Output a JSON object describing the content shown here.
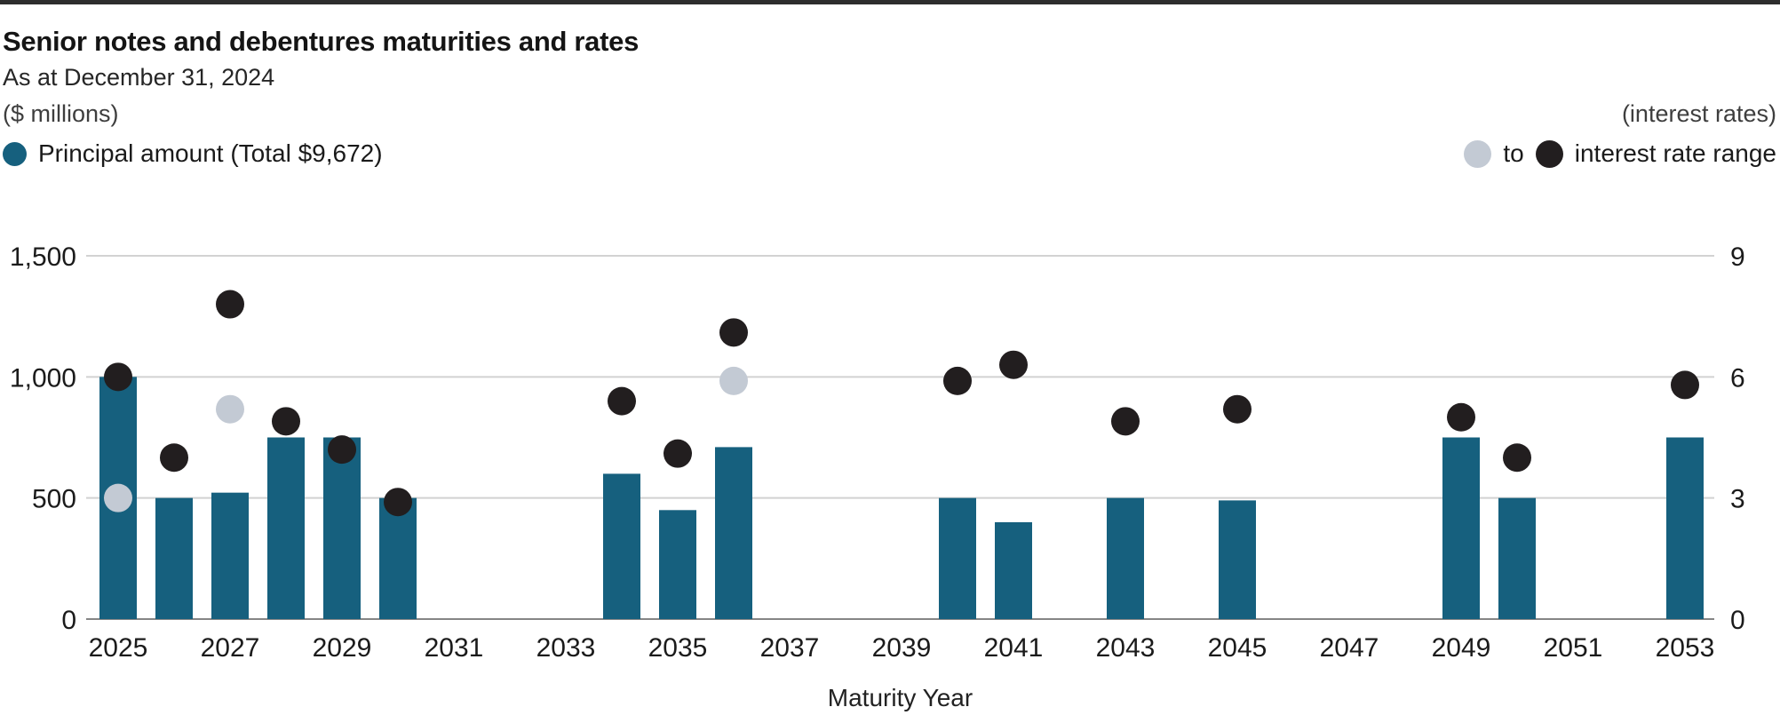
{
  "header": {
    "title": "Senior notes and debentures maturities and rates",
    "subtitle": "As at December 31, 2024",
    "left_axis_caption": "($ millions)",
    "right_axis_caption": "(interest rates)"
  },
  "legend": {
    "principal_label": "Principal amount (Total $9,672)",
    "principal_total": "$9,672",
    "range_to_label": "to",
    "range_label": "interest rate range"
  },
  "colors": {
    "bar": "#16607e",
    "dot_high": "#221e1f",
    "dot_low": "#c3cad4",
    "gridline": "#d2d2d2",
    "axis_line": "#858585",
    "top_rule": "#2d2d2d"
  },
  "chart_data": {
    "type": "bar",
    "title": "Senior notes and debentures maturities and rates",
    "subtitle": "As at December 31, 2024",
    "xlabel": "Maturity Year",
    "legend_position": "top",
    "grid": true,
    "left_axis": {
      "label": "($ millions)",
      "range": [
        0,
        1500
      ],
      "ticks": [
        0,
        500,
        1000,
        1500
      ],
      "tick_labels": [
        "0",
        "500",
        "1,000",
        "1,500"
      ]
    },
    "right_axis": {
      "label": "(interest rates)",
      "range": [
        0,
        9
      ],
      "ticks": [
        0,
        3,
        6,
        9
      ],
      "tick_labels": [
        "0",
        "3",
        "6",
        "9"
      ]
    },
    "x_range": [
      2025,
      2053
    ],
    "x_ticks": [
      2025,
      2027,
      2029,
      2031,
      2033,
      2035,
      2037,
      2039,
      2041,
      2043,
      2045,
      2047,
      2049,
      2051,
      2053
    ],
    "series_notes": "principal = bar height in $ millions (left axis); rate_high = black dot, rate_low = grey dot (right axis, %)",
    "bars": [
      {
        "year": 2025,
        "principal": 1000,
        "rate_low": 3.0,
        "rate_high": 6.0
      },
      {
        "year": 2026,
        "principal": 500,
        "rate_high": 4.0
      },
      {
        "year": 2027,
        "principal": 522,
        "rate_low": 5.2,
        "rate_high": 7.8
      },
      {
        "year": 2028,
        "principal": 750,
        "rate_high": 4.9
      },
      {
        "year": 2029,
        "principal": 750,
        "rate_high": 4.2
      },
      {
        "year": 2030,
        "principal": 500,
        "rate_high": 2.9
      },
      {
        "year": 2034,
        "principal": 600,
        "rate_high": 5.4
      },
      {
        "year": 2035,
        "principal": 450,
        "rate_high": 4.1
      },
      {
        "year": 2036,
        "principal": 710,
        "rate_low": 5.9,
        "rate_high": 7.1
      },
      {
        "year": 2040,
        "principal": 500,
        "rate_high": 5.9
      },
      {
        "year": 2041,
        "principal": 400,
        "rate_high": 6.3
      },
      {
        "year": 2043,
        "principal": 500,
        "rate_high": 4.9
      },
      {
        "year": 2045,
        "principal": 490,
        "rate_high": 5.2
      },
      {
        "year": 2049,
        "principal": 750,
        "rate_high": 5.0
      },
      {
        "year": 2050,
        "principal": 500,
        "rate_high": 4.0
      },
      {
        "year": 2053,
        "principal": 750,
        "rate_high": 5.8
      }
    ]
  }
}
